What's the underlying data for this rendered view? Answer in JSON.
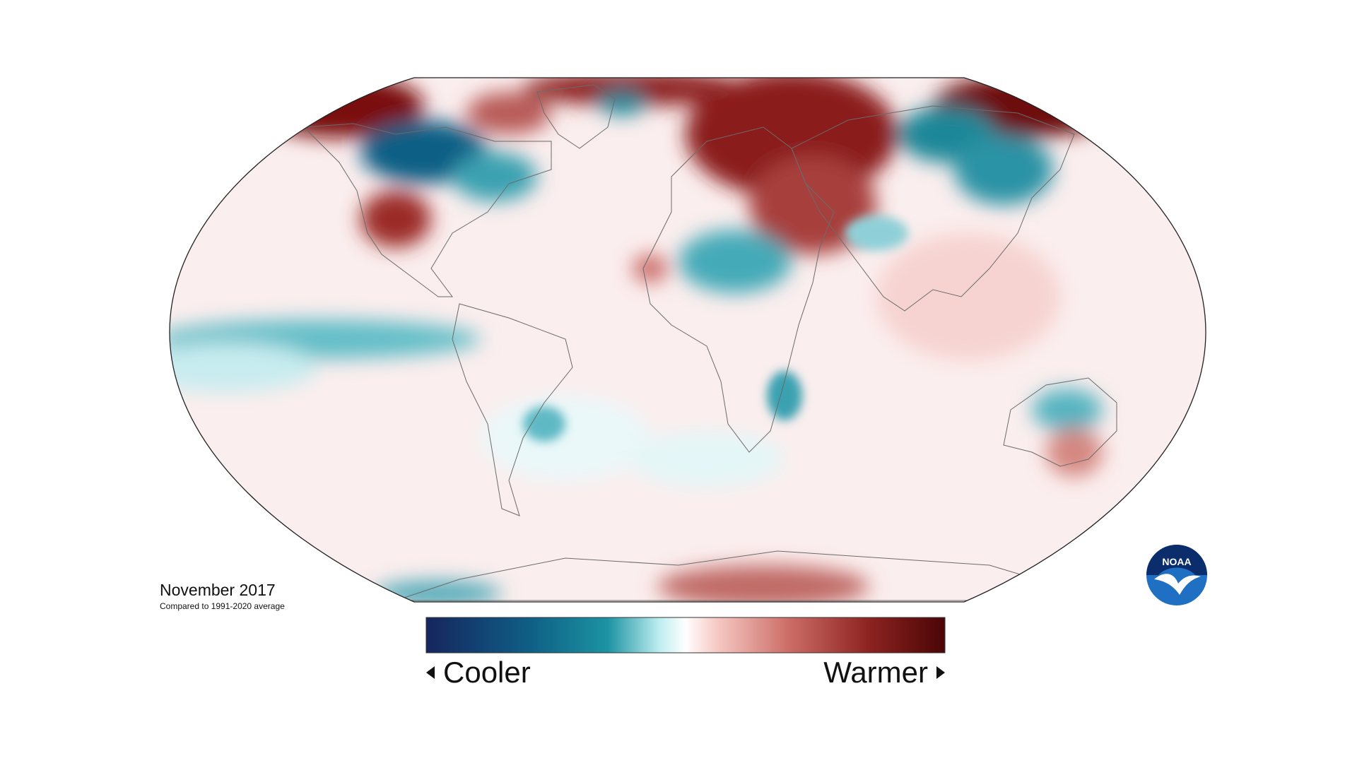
{
  "map": {
    "caption_title": "November 2017",
    "caption_subtitle": "Compared to 1991-2020 average",
    "projection": "Robinson",
    "colorscale": [
      "#16255e",
      "#0f7e92",
      "#ffffff",
      "#c75a55",
      "#4a0506"
    ]
  },
  "legend": {
    "cooler_label": "Cooler",
    "warmer_label": "Warmer"
  },
  "logo": {
    "text": "NOAA",
    "icon": "noaa-logo"
  }
}
